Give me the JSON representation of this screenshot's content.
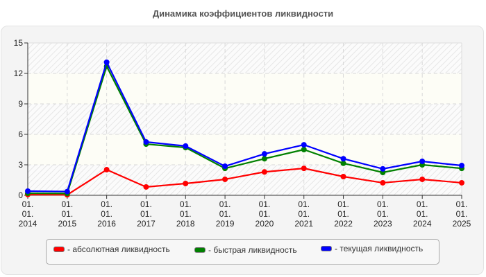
{
  "chart_data": {
    "type": "line",
    "title": "Динамика коэффициентов ликвидности",
    "xlabel": "",
    "ylabel": "",
    "ylim": [
      0,
      15
    ],
    "yticks": [
      0,
      3,
      6,
      9,
      12,
      15
    ],
    "grid": true,
    "legend_position": "bottom",
    "categories": [
      "01.01.2014",
      "01.01.2015",
      "01.01.2016",
      "01.01.2017",
      "01.01.2018",
      "01.01.2019",
      "01.01.2020",
      "01.01.2021",
      "01.01.2022",
      "01.01.2023",
      "01.01.2024",
      "01.01.2025"
    ],
    "category_lines": [
      [
        "01.",
        "01.",
        "2014"
      ],
      [
        "01.",
        "01.",
        "2015"
      ],
      [
        "01.",
        "01.",
        "2016"
      ],
      [
        "01.",
        "01.",
        "2017"
      ],
      [
        "01.",
        "01.",
        "2018"
      ],
      [
        "01.",
        "01.",
        "2019"
      ],
      [
        "01.",
        "01.",
        "2020"
      ],
      [
        "01.",
        "01.",
        "2021"
      ],
      [
        "01.",
        "01.",
        "2022"
      ],
      [
        "01.",
        "01.",
        "2023"
      ],
      [
        "01.",
        "01.",
        "2024"
      ],
      [
        "01.",
        "01.",
        "2025"
      ]
    ],
    "series": [
      {
        "name": "абсолютная ликвидность",
        "color": "#ff0000",
        "values": [
          0.07,
          0.05,
          2.52,
          0.82,
          1.16,
          1.57,
          2.3,
          2.65,
          1.84,
          1.23,
          1.57,
          1.23
        ]
      },
      {
        "name": "быстрая ликвидность",
        "color": "#008000",
        "values": [
          0.2,
          0.18,
          12.7,
          5.04,
          4.7,
          2.65,
          3.6,
          4.5,
          3.15,
          2.25,
          3.0,
          2.65
        ]
      },
      {
        "name": "текущая ликвидность",
        "color": "#0000ff",
        "values": [
          0.41,
          0.37,
          13.1,
          5.25,
          4.85,
          2.86,
          4.08,
          4.97,
          3.6,
          2.6,
          3.34,
          2.93
        ]
      }
    ]
  },
  "legend": {
    "items": [
      {
        "label": "- абсолютная ликвидность",
        "color": "#ff0000"
      },
      {
        "label": "- быстрая ликвидность",
        "color": "#008000"
      },
      {
        "label": "- текущая ликвидность",
        "color": "#0000ff"
      }
    ]
  }
}
